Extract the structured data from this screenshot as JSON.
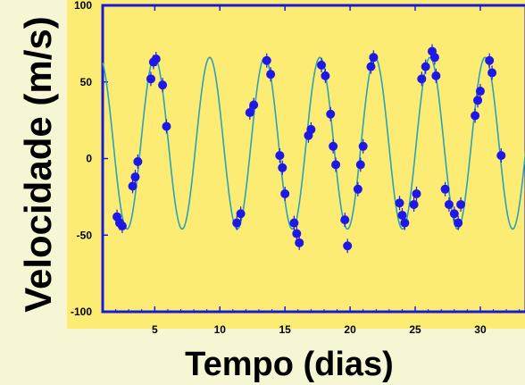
{
  "chart_data": {
    "type": "scatter",
    "title": "",
    "xlabel": "Tempo (dias)",
    "ylabel": "Velocidade (m/s)",
    "xlim": [
      1.0,
      33.5
    ],
    "ylim": [
      -100,
      100
    ],
    "xticks": [
      5,
      10,
      15,
      20,
      25,
      30
    ],
    "yticks": [
      100,
      50,
      0,
      -50,
      -100
    ],
    "grid": false,
    "colors": {
      "plot_background": "#fcec74",
      "frame": "#1a1ad6",
      "points": "#1e18e6",
      "curve": "#2aa3b8",
      "page_background": "#f6f6d4"
    },
    "model_curve": {
      "type": "sinusoid",
      "amplitude": 56,
      "offset": 10,
      "period_days": 4.23,
      "peak_day": 9.22
    },
    "series": [
      {
        "values": [
          [
            2.1,
            -38
          ],
          [
            2.3,
            -42
          ],
          [
            2.5,
            -44
          ],
          [
            3.3,
            -18
          ],
          [
            3.5,
            -12
          ],
          [
            3.7,
            -2
          ],
          [
            4.7,
            52
          ],
          [
            4.9,
            63
          ],
          [
            5.1,
            65
          ],
          [
            5.6,
            48
          ],
          [
            5.9,
            21
          ],
          [
            11.3,
            -42
          ],
          [
            11.6,
            -36
          ],
          [
            12.3,
            30
          ],
          [
            12.6,
            35
          ],
          [
            13.6,
            64
          ],
          [
            13.9,
            55
          ],
          [
            14.6,
            2
          ],
          [
            14.8,
            -6
          ],
          [
            15.0,
            -23
          ],
          [
            15.7,
            -42
          ],
          [
            15.9,
            -49
          ],
          [
            16.1,
            -55
          ],
          [
            16.8,
            15
          ],
          [
            17.0,
            19
          ],
          [
            17.8,
            61
          ],
          [
            18.1,
            54
          ],
          [
            18.5,
            29
          ],
          [
            18.7,
            8
          ],
          [
            18.9,
            -4
          ],
          [
            19.6,
            -40
          ],
          [
            19.8,
            -57
          ],
          [
            20.6,
            -20
          ],
          [
            20.8,
            -4
          ],
          [
            21.0,
            8
          ],
          [
            21.6,
            60
          ],
          [
            21.8,
            66
          ],
          [
            23.8,
            -29
          ],
          [
            24.0,
            -37
          ],
          [
            24.2,
            -42
          ],
          [
            24.9,
            -30
          ],
          [
            25.1,
            -23
          ],
          [
            25.5,
            52
          ],
          [
            25.8,
            60
          ],
          [
            26.3,
            70
          ],
          [
            26.5,
            66
          ],
          [
            26.6,
            54
          ],
          [
            27.3,
            -20
          ],
          [
            27.6,
            -30
          ],
          [
            28.0,
            -36
          ],
          [
            28.3,
            -42
          ],
          [
            28.5,
            -30
          ],
          [
            29.6,
            28
          ],
          [
            29.8,
            38
          ],
          [
            30.0,
            44
          ],
          [
            30.7,
            64
          ],
          [
            30.9,
            56
          ],
          [
            31.6,
            2
          ]
        ]
      }
    ]
  }
}
